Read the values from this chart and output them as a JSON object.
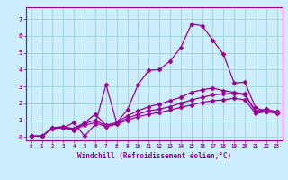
{
  "background_color": "#cceeff",
  "line_color": "#990099",
  "grid_color": "#99cccc",
  "xlabel": "Windchill (Refroidissement éolien,°C)",
  "xlim": [
    -0.5,
    23.5
  ],
  "ylim": [
    -0.2,
    7.7
  ],
  "xticks": [
    0,
    1,
    2,
    3,
    4,
    5,
    6,
    7,
    8,
    9,
    10,
    11,
    12,
    13,
    14,
    15,
    16,
    17,
    18,
    19,
    20,
    21,
    22,
    23
  ],
  "yticks": [
    0,
    1,
    2,
    3,
    4,
    5,
    6,
    7
  ],
  "series": [
    [
      0.05,
      0.05,
      0.5,
      0.55,
      0.85,
      0.05,
      0.75,
      3.1,
      0.85,
      1.6,
      3.1,
      3.95,
      4.0,
      4.5,
      5.3,
      6.7,
      6.6,
      5.75,
      4.9,
      3.2,
      3.25,
      1.75,
      1.5,
      1.5
    ],
    [
      0.05,
      0.05,
      0.55,
      0.6,
      0.5,
      0.85,
      1.35,
      0.7,
      0.85,
      1.25,
      1.55,
      1.8,
      1.95,
      2.15,
      2.35,
      2.65,
      2.8,
      2.9,
      2.75,
      2.65,
      2.55,
      1.55,
      1.65,
      1.5
    ],
    [
      0.05,
      0.05,
      0.55,
      0.6,
      0.45,
      0.8,
      1.0,
      0.65,
      0.8,
      1.1,
      1.35,
      1.55,
      1.65,
      1.8,
      2.0,
      2.2,
      2.35,
      2.5,
      2.55,
      2.6,
      2.5,
      1.5,
      1.55,
      1.45
    ],
    [
      0.05,
      0.05,
      0.5,
      0.55,
      0.4,
      0.7,
      0.85,
      0.6,
      0.75,
      1.0,
      1.2,
      1.35,
      1.45,
      1.6,
      1.75,
      1.9,
      2.05,
      2.15,
      2.2,
      2.3,
      2.2,
      1.4,
      1.5,
      1.4
    ]
  ],
  "marker": "D",
  "markersize": 2.5,
  "linewidth": 0.9
}
